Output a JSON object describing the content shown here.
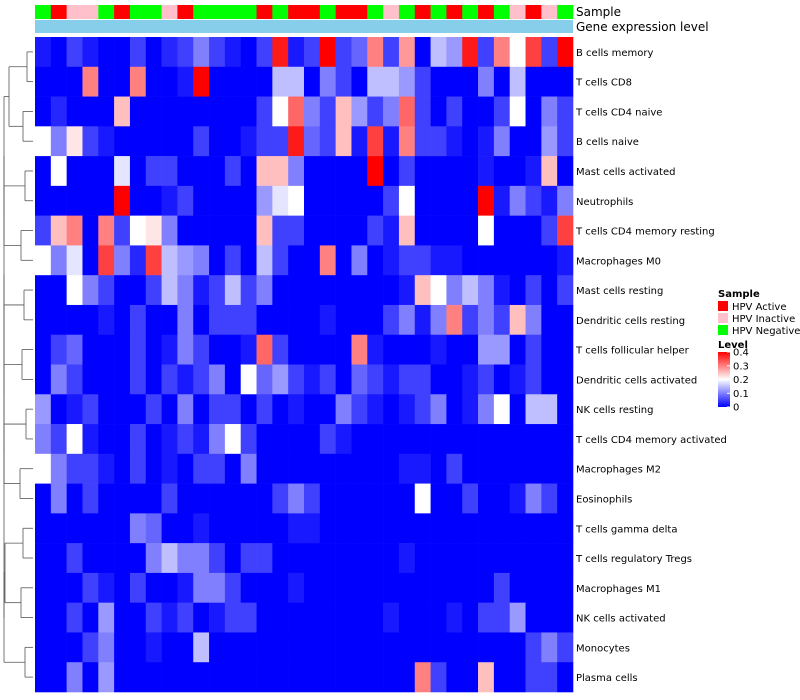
{
  "chart_data": {
    "type": "heatmap",
    "annotations": [
      {
        "name": "Sample",
        "values": [
          "HPV Negative",
          "HPV Active",
          "HPV Inactive",
          "HPV Inactive",
          "HPV Negative",
          "HPV Active",
          "HPV Negative",
          "HPV Negative",
          "HPV Inactive",
          "HPV Active",
          "HPV Negative",
          "HPV Negative",
          "HPV Negative",
          "HPV Negative",
          "HPV Active",
          "HPV Negative",
          "HPV Active",
          "HPV Active",
          "HPV Negative",
          "HPV Active",
          "HPV Active",
          "HPV Negative",
          "HPV Inactive",
          "HPV Negative",
          "HPV Active",
          "HPV Negative",
          "HPV Active",
          "HPV Negative",
          "HPV Active",
          "HPV Negative",
          "HPV Inactive",
          "HPV Active",
          "HPV Inactive",
          "HPV Negative"
        ]
      },
      {
        "name": "Gene expression level",
        "values": []
      }
    ],
    "rows": [
      "B cells memory",
      "T cells CD8",
      "T cells CD4 naive",
      "B cells naive",
      "Mast cells activated",
      "Neutrophils",
      "T cells CD4 memory resting",
      "Macrophages M0",
      "Mast cells resting",
      "Dendritic cells resting",
      "T cells follicular helper",
      "Dendritic cells activated",
      "NK cells resting",
      "T cells CD4 memory activated",
      "Macrophages M2",
      "Eosinophils",
      "T cells gamma delta",
      "T cells regulatory  Tregs",
      "Macrophages M1",
      "NK cells activated",
      "Monocytes",
      "Plasma cells"
    ],
    "values": [
      [
        0.02,
        0,
        0.05,
        0.02,
        0,
        0,
        0.05,
        0,
        0.03,
        0.05,
        0.1,
        0.05,
        0.02,
        0,
        0.05,
        0.38,
        0.02,
        0.05,
        0.4,
        0.05,
        0.08,
        0.3,
        0.05,
        0.28,
        0,
        0.15,
        0.12,
        0.38,
        0.05,
        0.3,
        0.2,
        0.35,
        0.05,
        0.4
      ],
      [
        0,
        0,
        0,
        0.3,
        0,
        0,
        0.3,
        0,
        0,
        0.02,
        0.4,
        0,
        0,
        0,
        0,
        0.15,
        0.15,
        0,
        0.1,
        0.05,
        0,
        0.15,
        0.15,
        0.12,
        0.05,
        0,
        0,
        0,
        0.1,
        0,
        0.15,
        0,
        0,
        0
      ],
      [
        0,
        0.03,
        0,
        0,
        0,
        0.25,
        0,
        0,
        0,
        0,
        0,
        0,
        0,
        0,
        0.05,
        0.2,
        0.32,
        0.1,
        0.05,
        0.25,
        0.12,
        0.05,
        0.1,
        0.32,
        0.05,
        0,
        0.05,
        0,
        0,
        0.05,
        0.2,
        0,
        0.1,
        0.05
      ],
      [
        0.2,
        0.1,
        0.22,
        0.05,
        0.02,
        0,
        0,
        0,
        0,
        0,
        0.05,
        0,
        0,
        0.02,
        0.05,
        0.05,
        0.38,
        0.08,
        0.05,
        0.25,
        0.02,
        0.35,
        0.02,
        0.3,
        0.05,
        0.05,
        0.02,
        0,
        0.02,
        0.1,
        0,
        0,
        0.12,
        0.05
      ],
      [
        0,
        0.2,
        0,
        0,
        0,
        0.18,
        0,
        0.05,
        0.05,
        0,
        0,
        0,
        0.05,
        0,
        0.25,
        0.25,
        0.1,
        0,
        0,
        0,
        0,
        0.4,
        0,
        0.05,
        0,
        0,
        0,
        0,
        0.02,
        0,
        0,
        0.02,
        0.25,
        0
      ],
      [
        0,
        0,
        0,
        0,
        0,
        0.4,
        0,
        0,
        0.02,
        0.05,
        0,
        0,
        0,
        0,
        0.12,
        0.18,
        0.2,
        0,
        0,
        0,
        0,
        0,
        0.05,
        0.2,
        0,
        0,
        0,
        0,
        0.4,
        0.02,
        0.1,
        0.05,
        0.02,
        0.1
      ],
      [
        0.05,
        0.25,
        0.3,
        0,
        0.3,
        0.05,
        0.2,
        0.22,
        0.1,
        0,
        0,
        0,
        0,
        0,
        0.25,
        0.05,
        0.05,
        0,
        0,
        0,
        0,
        0.05,
        0.02,
        0.25,
        0,
        0,
        0,
        0,
        0.2,
        0,
        0,
        0,
        0.05,
        0.35
      ],
      [
        0.2,
        0.1,
        0.18,
        0,
        0.35,
        0.1,
        0.03,
        0.35,
        0.15,
        0.12,
        0.1,
        0,
        0.05,
        0,
        0.15,
        0.05,
        0,
        0,
        0.3,
        0,
        0.1,
        0,
        0.02,
        0.05,
        0.05,
        0.02,
        0.02,
        0,
        0,
        0,
        0,
        0,
        0,
        0.02
      ],
      [
        0,
        0,
        0.2,
        0.1,
        0.05,
        0,
        0,
        0.05,
        0.15,
        0.1,
        0.02,
        0.05,
        0.15,
        0.05,
        0.1,
        0,
        0,
        0,
        0,
        0,
        0,
        0,
        0,
        0.02,
        0.25,
        0.2,
        0.1,
        0.15,
        0.1,
        0.02,
        0,
        0.05,
        0,
        0.05
      ],
      [
        0,
        0,
        0,
        0,
        0.02,
        0,
        0.05,
        0,
        0,
        0.1,
        0,
        0.05,
        0.05,
        0.05,
        0,
        0,
        0,
        0,
        0.02,
        0,
        0,
        0,
        0.05,
        0.1,
        0.02,
        0.1,
        0.3,
        0.05,
        0.1,
        0.05,
        0.25,
        0.1,
        0,
        0
      ],
      [
        0,
        0.05,
        0.08,
        0,
        0,
        0,
        0.05,
        0,
        0.02,
        0.1,
        0.05,
        0,
        0,
        0.02,
        0.32,
        0.05,
        0,
        0,
        0,
        0,
        0.3,
        0.02,
        0,
        0,
        0,
        0.02,
        0,
        0,
        0.12,
        0.12,
        0,
        0.05,
        0,
        0
      ],
      [
        0,
        0.1,
        0.05,
        0,
        0,
        0,
        0.05,
        0,
        0.05,
        0.02,
        0.05,
        0.1,
        0,
        0.2,
        0.08,
        0.12,
        0.05,
        0.02,
        0.05,
        0,
        0.08,
        0.05,
        0.02,
        0.05,
        0.05,
        0,
        0,
        0.02,
        0.05,
        0,
        0.02,
        0.05,
        0,
        0
      ],
      [
        0.12,
        0,
        0.02,
        0.05,
        0,
        0,
        0,
        0.05,
        0,
        0.1,
        0,
        0.05,
        0.05,
        0,
        0.05,
        0,
        0.02,
        0,
        0,
        0.1,
        0.05,
        0.02,
        0,
        0.02,
        0.05,
        0.1,
        0,
        0.02,
        0.1,
        0.2,
        0,
        0.15,
        0.15,
        0
      ],
      [
        0.1,
        0.05,
        0.2,
        0.02,
        0,
        0,
        0.05,
        0,
        0.02,
        0.05,
        0.02,
        0.1,
        0.2,
        0.05,
        0,
        0,
        0,
        0,
        0.05,
        0.02,
        0,
        0,
        0,
        0,
        0,
        0,
        0,
        0,
        0,
        0,
        0,
        0,
        0,
        0
      ],
      [
        0.2,
        0.1,
        0.05,
        0.05,
        0.02,
        0,
        0.05,
        0,
        0.02,
        0,
        0.05,
        0.05,
        0,
        0.1,
        0,
        0,
        0,
        0,
        0,
        0,
        0,
        0,
        0,
        0.02,
        0.02,
        0,
        0.05,
        0,
        0,
        0,
        0,
        0,
        0,
        0
      ],
      [
        0,
        0.1,
        0,
        0.05,
        0,
        0,
        0,
        0,
        0.05,
        0,
        0,
        0,
        0,
        0,
        0,
        0.05,
        0.1,
        0.05,
        0,
        0,
        0,
        0,
        0,
        0,
        0.2,
        0,
        0,
        0.05,
        0,
        0,
        0.02,
        0.1,
        0.05,
        0
      ],
      [
        0,
        0,
        0,
        0,
        0,
        0,
        0.1,
        0.08,
        0,
        0,
        0.02,
        0,
        0,
        0,
        0,
        0,
        0.02,
        0.02,
        0,
        0,
        0,
        0,
        0,
        0,
        0,
        0,
        0,
        0,
        0,
        0,
        0,
        0,
        0,
        0
      ],
      [
        0,
        0,
        0.05,
        0,
        0,
        0,
        0,
        0.1,
        0.15,
        0.1,
        0.1,
        0.05,
        0,
        0.05,
        0.05,
        0,
        0,
        0,
        0,
        0,
        0,
        0,
        0,
        0.02,
        0,
        0,
        0,
        0,
        0,
        0,
        0,
        0,
        0,
        0
      ],
      [
        0,
        0,
        0,
        0.05,
        0.02,
        0,
        0.05,
        0,
        0,
        0.02,
        0.1,
        0.1,
        0.05,
        0,
        0,
        0,
        0.02,
        0,
        0,
        0,
        0,
        0,
        0,
        0,
        0,
        0,
        0,
        0,
        0,
        0.05,
        0,
        0,
        0,
        0
      ],
      [
        0,
        0,
        0.05,
        0,
        0.12,
        0,
        0,
        0.05,
        0.02,
        0.05,
        0,
        0.02,
        0.05,
        0.05,
        0,
        0,
        0,
        0,
        0,
        0,
        0,
        0,
        0.02,
        0,
        0,
        0,
        0.02,
        0,
        0.05,
        0.05,
        0.12,
        0,
        0,
        0
      ],
      [
        0,
        0,
        0,
        0.05,
        0.1,
        0,
        0,
        0.02,
        0,
        0,
        0.15,
        0,
        0,
        0,
        0,
        0,
        0,
        0,
        0,
        0,
        0,
        0,
        0,
        0,
        0,
        0,
        0,
        0,
        0,
        0,
        0,
        0.05,
        0.1,
        0.05
      ],
      [
        0,
        0,
        0.1,
        0,
        0.12,
        0,
        0,
        0,
        0,
        0,
        0,
        0,
        0,
        0,
        0,
        0,
        0,
        0,
        0,
        0,
        0,
        0,
        0,
        0,
        0.3,
        0.05,
        0,
        0,
        0.25,
        0,
        0,
        0.05,
        0.05,
        0
      ]
    ],
    "colorscale": {
      "low": "#0000ff",
      "mid": "#ffffff",
      "high": "#ff0000",
      "min": 0,
      "mid_value": 0.2,
      "max": 0.4
    },
    "sample_colors": {
      "HPV Active": "#ff0000",
      "HPV Inactive": "#ffc0cb",
      "HPV Negative": "#00ff00"
    },
    "expression_color": "#87ceeb",
    "legend": {
      "sample_title": "Sample",
      "sample_entries": [
        "HPV Active",
        "HPV Inactive",
        "HPV Negative"
      ],
      "level_title": "Level",
      "level_ticks": [
        "0.4",
        "0.3",
        "0.2",
        "0.1",
        "0"
      ],
      "level_tick_values": [
        0.4,
        0.3,
        0.2,
        0.1,
        0
      ],
      "placement": "right"
    },
    "row_dendrogram": true,
    "column_dendrogram": false
  }
}
